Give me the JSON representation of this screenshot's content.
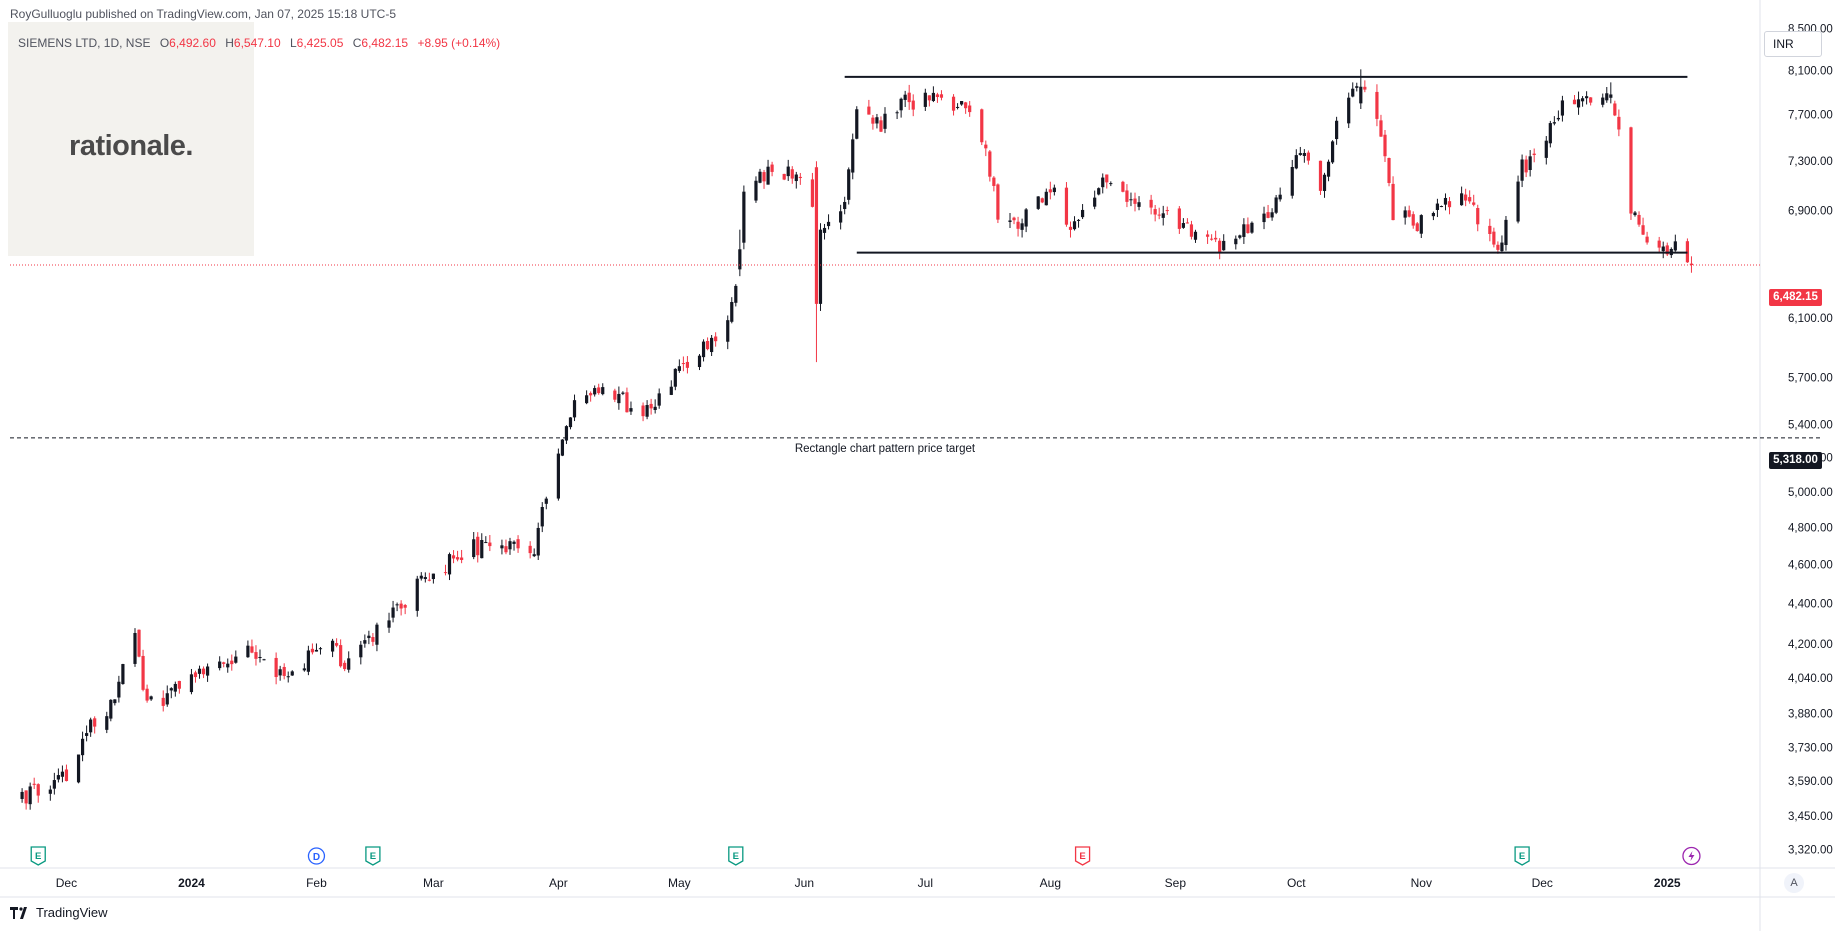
{
  "header": {
    "published": "RoyGulluoglu published on TradingView.com, Jan 07, 2025 15:18 UTC-5",
    "symbol": "SIEMENS LTD, 1D, NSE",
    "open_label": "O",
    "open": "6,492.60",
    "high_label": "H",
    "high": "6,547.10",
    "low_label": "L",
    "low": "6,425.05",
    "close_label": "C",
    "close": "6,482.15",
    "change": "+8.95 (+0.14%)"
  },
  "logo": {
    "text": "rationale."
  },
  "currency": "INR",
  "price_badge": "6,482.15",
  "target_badge": "5,318.00",
  "target_label": "Rectangle chart pattern price target",
  "auto_label": "A",
  "footer_brand": "TradingView",
  "icons": [
    "earnings-icon",
    "dividend-icon",
    "lightning-icon",
    "tradingview-logo-icon"
  ],
  "colors": {
    "up": "#131722",
    "down": "#f23645",
    "target_line": "#131722",
    "current_price": "#f23645"
  },
  "chart_data": {
    "type": "candlestick",
    "symbol": "SIEMENS LTD",
    "interval": "1D",
    "exchange": "NSE",
    "y_scale": "log",
    "ylim": [
      3250,
      8700
    ],
    "y_ticks": [
      {
        "v": 8500,
        "label": "8,500.00"
      },
      {
        "v": 8100,
        "label": "8,100.00"
      },
      {
        "v": 7700,
        "label": "7,700.00"
      },
      {
        "v": 7300,
        "label": "7,300.00"
      },
      {
        "v": 6900,
        "label": "6,900.00"
      },
      {
        "v": 6100,
        "label": "6,100.00"
      },
      {
        "v": 5700,
        "label": "5,700.00"
      },
      {
        "v": 5400,
        "label": "5,400.00"
      },
      {
        "v": 5200,
        "label": "5,200.00"
      },
      {
        "v": 5000,
        "label": "5,000.00"
      },
      {
        "v": 4800,
        "label": "4,800.00"
      },
      {
        "v": 4600,
        "label": "4,600.00"
      },
      {
        "v": 4400,
        "label": "4,400.00"
      },
      {
        "v": 4200,
        "label": "4,200.00"
      },
      {
        "v": 4040,
        "label": "4,040.00"
      },
      {
        "v": 3880,
        "label": "3,880.00"
      },
      {
        "v": 3730,
        "label": "3,730.00"
      },
      {
        "v": 3590,
        "label": "3,590.00"
      },
      {
        "v": 3450,
        "label": "3,450.00"
      },
      {
        "v": 3320,
        "label": "3,320.00"
      }
    ],
    "x_ticks": [
      {
        "label": "Dec",
        "date": "2023-12-01"
      },
      {
        "label": "2024",
        "date": "2024-01-01"
      },
      {
        "label": "Feb",
        "date": "2024-02-01"
      },
      {
        "label": "Mar",
        "date": "2024-03-01"
      },
      {
        "label": "Apr",
        "date": "2024-04-01"
      },
      {
        "label": "May",
        "date": "2024-05-01"
      },
      {
        "label": "Jun",
        "date": "2024-06-01"
      },
      {
        "label": "Jul",
        "date": "2024-07-01"
      },
      {
        "label": "Aug",
        "date": "2024-08-01"
      },
      {
        "label": "Sep",
        "date": "2024-09-01"
      },
      {
        "label": "Oct",
        "date": "2024-10-01"
      },
      {
        "label": "Nov",
        "date": "2024-11-01"
      },
      {
        "label": "Dec",
        "date": "2024-12-01"
      },
      {
        "label": "2025",
        "date": "2025-01-01"
      }
    ],
    "x_range": [
      "2023-11-17",
      "2025-01-24"
    ],
    "last_bar": "2025-01-07",
    "path": [
      [
        "2023-11-20",
        3530
      ],
      [
        "2023-12-01",
        3620
      ],
      [
        "2023-12-08",
        3860
      ],
      [
        "2023-12-12",
        3920
      ],
      [
        "2023-12-18",
        4240
      ],
      [
        "2023-12-20",
        3980
      ],
      [
        "2023-12-26",
        3940
      ],
      [
        "2024-01-01",
        4030
      ],
      [
        "2024-01-08",
        4120
      ],
      [
        "2024-01-15",
        4180
      ],
      [
        "2024-01-24",
        4040
      ],
      [
        "2024-02-01",
        4160
      ],
      [
        "2024-02-05",
        4250
      ],
      [
        "2024-02-08",
        4080
      ],
      [
        "2024-02-12",
        4160
      ],
      [
        "2024-02-19",
        4350
      ],
      [
        "2024-03-01",
        4560
      ],
      [
        "2024-03-12",
        4700
      ],
      [
        "2024-03-20",
        4700
      ],
      [
        "2024-03-26",
        4620
      ],
      [
        "2024-03-28",
        4950
      ],
      [
        "2024-04-01",
        5180
      ],
      [
        "2024-04-05",
        5500
      ],
      [
        "2024-04-10",
        5660
      ],
      [
        "2024-04-15",
        5580
      ],
      [
        "2024-04-22",
        5450
      ],
      [
        "2024-04-29",
        5680
      ],
      [
        "2024-05-08",
        5900
      ],
      [
        "2024-05-14",
        6200
      ],
      [
        "2024-05-16",
        6600
      ],
      [
        "2024-05-17",
        7000
      ],
      [
        "2024-05-22",
        7200
      ],
      [
        "2024-05-29",
        7180
      ],
      [
        "2024-06-03",
        6950
      ],
      [
        "2024-06-04",
        6300
      ],
      [
        "2024-06-05",
        6700
      ],
      [
        "2024-06-10",
        6870
      ],
      [
        "2024-06-12",
        7200
      ],
      [
        "2024-06-14",
        7780
      ],
      [
        "2024-06-20",
        7600
      ],
      [
        "2024-06-26",
        7800
      ],
      [
        "2024-07-03",
        7850
      ],
      [
        "2024-07-08",
        7800
      ],
      [
        "2024-07-12",
        7690
      ],
      [
        "2024-07-16",
        7350
      ],
      [
        "2024-07-19",
        6900
      ],
      [
        "2024-07-24",
        6760
      ],
      [
        "2024-07-30",
        7000
      ],
      [
        "2024-08-02",
        7050
      ],
      [
        "2024-08-06",
        6700
      ],
      [
        "2024-08-09",
        6860
      ],
      [
        "2024-08-14",
        7120
      ],
      [
        "2024-08-20",
        7040
      ],
      [
        "2024-08-26",
        6920
      ],
      [
        "2024-09-03",
        6750
      ],
      [
        "2024-09-10",
        6620
      ],
      [
        "2024-09-16",
        6680
      ],
      [
        "2024-09-23",
        6820
      ],
      [
        "2024-09-27",
        7050
      ],
      [
        "2024-10-03",
        7420
      ],
      [
        "2024-10-07",
        7000
      ],
      [
        "2024-10-11",
        7650
      ],
      [
        "2024-10-17",
        7950
      ],
      [
        "2024-10-22",
        7500
      ],
      [
        "2024-10-25",
        6900
      ],
      [
        "2024-10-31",
        6800
      ],
      [
        "2024-11-06",
        6940
      ],
      [
        "2024-11-12",
        6990
      ],
      [
        "2024-11-18",
        6700
      ],
      [
        "2024-11-21",
        6620
      ],
      [
        "2024-11-25",
        7200
      ],
      [
        "2024-12-02",
        7500
      ],
      [
        "2024-12-06",
        7790
      ],
      [
        "2024-12-13",
        7850
      ],
      [
        "2024-12-18",
        7880
      ],
      [
        "2024-12-20",
        7500
      ],
      [
        "2024-12-23",
        6900
      ],
      [
        "2024-12-27",
        6700
      ],
      [
        "2025-01-01",
        6520
      ],
      [
        "2025-01-03",
        6600
      ],
      [
        "2025-01-07",
        6482
      ]
    ],
    "annotations": [
      {
        "type": "hline",
        "label": "Rectangle chart pattern price target",
        "value": 5318
      },
      {
        "type": "segment",
        "label": "",
        "from": [
          "2024-06-11",
          8040
        ],
        "to": [
          "2025-01-06",
          8040
        ]
      },
      {
        "type": "segment",
        "label": "",
        "from": [
          "2024-06-14",
          6575
        ],
        "to": [
          "2025-01-06",
          6575
        ]
      },
      {
        "type": "hline",
        "label": "",
        "value": 6482.15
      }
    ],
    "events": [
      {
        "kind": "earnings",
        "date": "2023-11-24"
      },
      {
        "kind": "dividend",
        "date": "2024-02-01"
      },
      {
        "kind": "earnings",
        "date": "2024-02-15"
      },
      {
        "kind": "earnings",
        "date": "2024-05-15"
      },
      {
        "kind": "earnings-red",
        "date": "2024-08-09"
      },
      {
        "kind": "earnings",
        "date": "2024-11-26"
      },
      {
        "kind": "lightning",
        "date": "2025-01-07"
      }
    ]
  }
}
